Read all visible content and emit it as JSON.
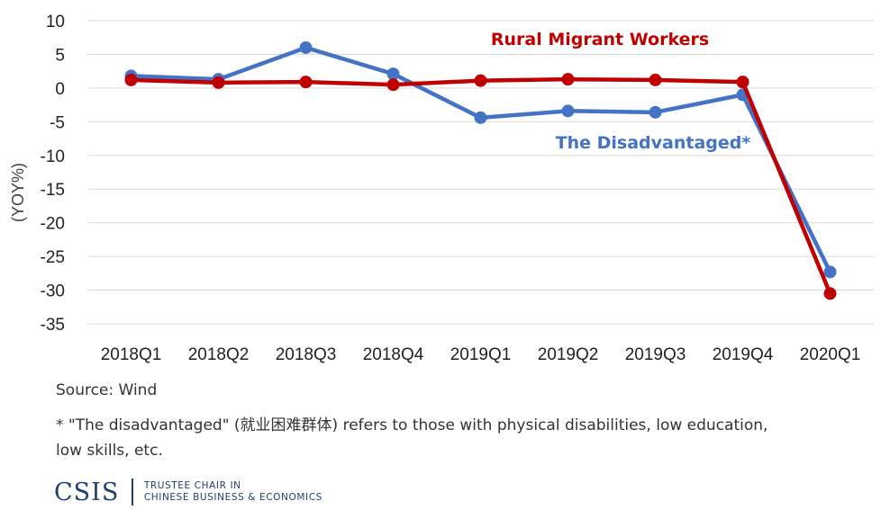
{
  "chart_data": {
    "type": "line",
    "categories": [
      "2018Q1",
      "2018Q2",
      "2018Q3",
      "2018Q4",
      "2019Q1",
      "2019Q2",
      "2019Q3",
      "2019Q4",
      "2020Q1"
    ],
    "series": [
      {
        "name": "The Disadvantaged*",
        "color": "#4472c4",
        "values": [
          1.8,
          1.3,
          6.0,
          2.1,
          -4.4,
          -3.4,
          -3.6,
          -1.0,
          -27.3
        ]
      },
      {
        "name": "Rural Migrant Workers",
        "color": "#c00000",
        "values": [
          1.2,
          0.8,
          0.9,
          0.5,
          1.1,
          1.3,
          1.2,
          0.9,
          -30.5
        ]
      }
    ],
    "ylabel": "(YOY%)",
    "ylim": [
      -35,
      10
    ],
    "yticks": [
      10,
      5,
      0,
      -5,
      -10,
      -15,
      -20,
      -25,
      -30,
      -35
    ],
    "ytick_labels": [
      "10",
      "5",
      "0",
      "-5",
      "-10",
      "-15",
      "-20",
      "-25",
      "-30",
      "-35"
    ],
    "grid": true
  },
  "notes": {
    "source": "Source: Wind",
    "footnote_line1": "* \"The disadvantaged\" (就业困难群体)  refers to those with physical disabilities, low education,",
    "footnote_line2": "low skills, etc."
  },
  "logo": {
    "word": "CSIS",
    "tagline_line1": "TRUSTEE CHAIR IN",
    "tagline_line2": "CHINESE BUSINESS & ECONOMICS"
  }
}
